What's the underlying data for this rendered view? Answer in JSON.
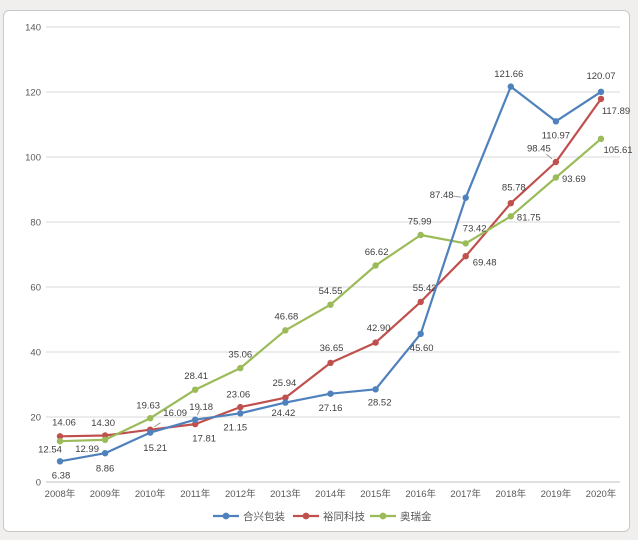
{
  "chart_data": {
    "type": "line",
    "title": "",
    "categories": [
      "2008年",
      "2009年",
      "2010年",
      "2011年",
      "2012年",
      "2013年",
      "2014年",
      "2015年",
      "2016年",
      "2017年",
      "2018年",
      "2019年",
      "2020年"
    ],
    "series": [
      {
        "name": "合兴包装",
        "color": "#4F81BD",
        "values": [
          6.38,
          8.86,
          15.21,
          19.18,
          21.15,
          24.42,
          27.16,
          28.52,
          45.6,
          87.48,
          121.66,
          110.97,
          120.07
        ],
        "label_offsets": [
          [
            1,
            14
          ],
          [
            0,
            15
          ],
          [
            5,
            15
          ],
          [
            6,
            -13
          ],
          [
            -5,
            14
          ],
          [
            -2,
            10
          ],
          [
            0,
            14
          ],
          [
            4,
            13
          ],
          [
            1,
            14
          ],
          [
            -24,
            -3
          ],
          [
            -2,
            -13
          ],
          [
            0,
            14
          ],
          [
            0,
            -16
          ]
        ],
        "leader_points": [
          3,
          9
        ]
      },
      {
        "name": "裕同科技",
        "color": "#C0504D",
        "values": [
          14.06,
          14.3,
          16.09,
          17.81,
          23.06,
          25.94,
          36.65,
          42.9,
          55.42,
          69.48,
          85.78,
          98.45,
          117.89
        ],
        "label_offsets": [
          [
            4,
            -14
          ],
          [
            -2,
            -13
          ],
          [
            25,
            -17
          ],
          [
            9,
            14
          ],
          [
            -2,
            -13
          ],
          [
            -1,
            -15
          ],
          [
            1,
            -15
          ],
          [
            3,
            -15
          ],
          [
            4,
            -14
          ],
          [
            19,
            6
          ],
          [
            3,
            -16
          ],
          [
            -17,
            -14
          ],
          [
            15,
            12
          ]
        ],
        "leader_points": [
          2,
          11
        ]
      },
      {
        "name": "奥瑞金",
        "color": "#9BBB59",
        "values": [
          12.54,
          12.99,
          19.63,
          28.41,
          35.06,
          46.68,
          54.55,
          66.62,
          75.99,
          73.42,
          81.75,
          93.69,
          105.61
        ],
        "label_offsets": [
          [
            -10,
            8
          ],
          [
            -18,
            9
          ],
          [
            -2,
            -13
          ],
          [
            1,
            -14
          ],
          [
            0,
            -14
          ],
          [
            1,
            -14
          ],
          [
            0,
            -14
          ],
          [
            1,
            -14
          ],
          [
            -1,
            -14
          ],
          [
            9,
            -15
          ],
          [
            18,
            1
          ],
          [
            18,
            1
          ],
          [
            17,
            11
          ]
        ],
        "leader_points": []
      }
    ],
    "y_axis": {
      "min": 0,
      "max": 140,
      "step": 20,
      "tick_labels": [
        "0",
        "20",
        "40",
        "60",
        "80",
        "100",
        "120",
        "140"
      ]
    },
    "grid": true,
    "data_labels": true,
    "legend_position": "bottom",
    "draw_order": [
      1,
      2,
      0
    ]
  },
  "colors": {
    "gridline": "#d9d9d9",
    "axis_line": "#bfbfbf",
    "axis_text": "#595959",
    "data_label_text": "#3f3f3f",
    "leader_line": "#9b9b9b",
    "legend_text": "#595959",
    "panel_border": "#c9c9c9",
    "page_background": "#f0efed"
  }
}
